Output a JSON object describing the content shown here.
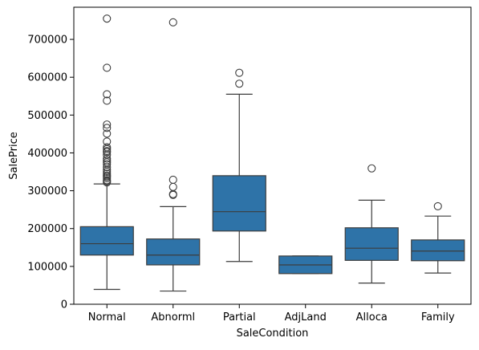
{
  "chart_data": {
    "type": "box",
    "title": "",
    "xlabel": "SaleCondition",
    "ylabel": "SalePrice",
    "ylim": [
      0,
      785000
    ],
    "yticks": [
      0,
      100000,
      200000,
      300000,
      400000,
      500000,
      600000,
      700000
    ],
    "ytick_labels": [
      "0",
      "100000",
      "200000",
      "300000",
      "400000",
      "500000",
      "600000",
      "700000"
    ],
    "grid": false,
    "box_color": "#2e73a8",
    "categories": [
      "Normal",
      "Abnorml",
      "Partial",
      "AdjLand",
      "Alloca",
      "Family"
    ],
    "boxes": [
      {
        "category": "Normal",
        "whisker_low": 39300,
        "q1": 130000,
        "median": 160000,
        "q3": 205000,
        "whisker_high": 318000,
        "outliers": [
          755000,
          625000,
          555000,
          538000,
          475000,
          466000,
          451000,
          430000,
          415000,
          410000,
          405000,
          402000,
          395000,
          385000,
          380000,
          375000,
          370000,
          362000,
          355000,
          350000,
          345000,
          340000,
          337000,
          333000,
          328000,
          325000,
          322000
        ]
      },
      {
        "category": "Abnorml",
        "whisker_low": 34900,
        "q1": 104000,
        "median": 130000,
        "q3": 172500,
        "whisker_high": 258000,
        "outliers": [
          745000,
          328900,
          310000,
          291000,
          289000
        ]
      },
      {
        "category": "Partial",
        "whisker_low": 113000,
        "q1": 193500,
        "median": 244600,
        "q3": 339750,
        "whisker_high": 555000,
        "outliers": [
          611657,
          582933
        ]
      },
      {
        "category": "AdjLand",
        "whisker_low": 81000,
        "q1": 81000,
        "median": 104000,
        "q3": 127500,
        "whisker_high": 127500,
        "outliers": []
      },
      {
        "category": "Alloca",
        "whisker_low": 55993,
        "q1": 116000,
        "median": 148145,
        "q3": 202043,
        "whisker_high": 275000,
        "outliers": [
          359100
        ]
      },
      {
        "category": "Family",
        "whisker_low": 82500,
        "q1": 115000,
        "median": 140500,
        "q3": 170000,
        "whisker_high": 233000,
        "outliers": [
          259000
        ]
      }
    ]
  }
}
